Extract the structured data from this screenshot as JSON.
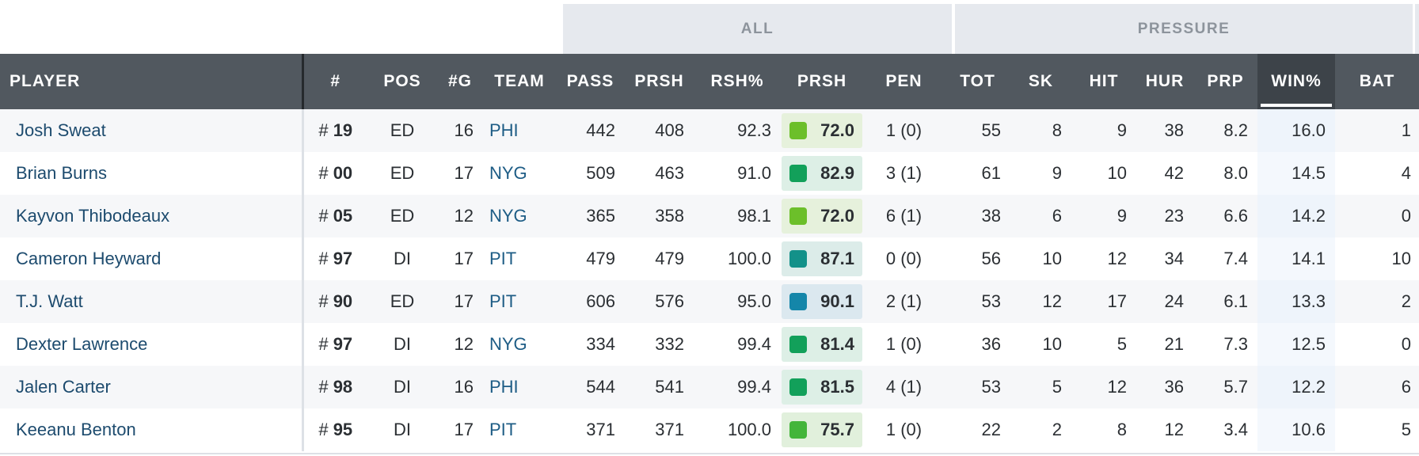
{
  "column_groups": {
    "all": "ALL",
    "pressure": "PRESSURE"
  },
  "headers": {
    "player": "PLAYER",
    "jersey": "#",
    "pos": "POS",
    "games": "#G",
    "team": "TEAM",
    "pass": "PASS",
    "prsh": "PRSH",
    "rsh_pct": "RSH%",
    "prsh_grade": "PRSH",
    "pen": "PEN",
    "tot": "TOT",
    "sk": "SK",
    "hit": "HIT",
    "hur": "HUR",
    "prp": "PRP",
    "win_pct": "WIN%",
    "bat": "BAT"
  },
  "sorted_column": "WIN%",
  "grade_colors": {
    "lime": "#6cbf2a",
    "green": "#12a05a",
    "teal": "#139189",
    "blue": "#1486a9",
    "mid": "#43b53a"
  },
  "rows": [
    {
      "player": "Josh Sweat",
      "jersey_prefix": "#",
      "jersey": "19",
      "pos": "ED",
      "games": "16",
      "team": "PHI",
      "pass": "442",
      "prsh": "408",
      "rsh_pct": "92.3",
      "grade": "72.0",
      "grade_color": "lime",
      "pen": "1 (0)",
      "tot": "55",
      "sk": "8",
      "hit": "9",
      "hur": "38",
      "prp": "8.2",
      "win_pct": "16.0",
      "bat": "1"
    },
    {
      "player": "Brian Burns",
      "jersey_prefix": "#",
      "jersey": "00",
      "pos": "ED",
      "games": "17",
      "team": "NYG",
      "pass": "509",
      "prsh": "463",
      "rsh_pct": "91.0",
      "grade": "82.9",
      "grade_color": "green",
      "pen": "3 (1)",
      "tot": "61",
      "sk": "9",
      "hit": "10",
      "hur": "42",
      "prp": "8.0",
      "win_pct": "14.5",
      "bat": "4"
    },
    {
      "player": "Kayvon Thibodeaux",
      "jersey_prefix": "#",
      "jersey": "05",
      "pos": "ED",
      "games": "12",
      "team": "NYG",
      "pass": "365",
      "prsh": "358",
      "rsh_pct": "98.1",
      "grade": "72.0",
      "grade_color": "lime",
      "pen": "6 (1)",
      "tot": "38",
      "sk": "6",
      "hit": "9",
      "hur": "23",
      "prp": "6.6",
      "win_pct": "14.2",
      "bat": "0"
    },
    {
      "player": "Cameron Heyward",
      "jersey_prefix": "#",
      "jersey": "97",
      "pos": "DI",
      "games": "17",
      "team": "PIT",
      "pass": "479",
      "prsh": "479",
      "rsh_pct": "100.0",
      "grade": "87.1",
      "grade_color": "teal",
      "pen": "0 (0)",
      "tot": "56",
      "sk": "10",
      "hit": "12",
      "hur": "34",
      "prp": "7.4",
      "win_pct": "14.1",
      "bat": "10"
    },
    {
      "player": "T.J. Watt",
      "jersey_prefix": "#",
      "jersey": "90",
      "pos": "ED",
      "games": "17",
      "team": "PIT",
      "pass": "606",
      "prsh": "576",
      "rsh_pct": "95.0",
      "grade": "90.1",
      "grade_color": "blue",
      "pen": "2 (1)",
      "tot": "53",
      "sk": "12",
      "hit": "17",
      "hur": "24",
      "prp": "6.1",
      "win_pct": "13.3",
      "bat": "2"
    },
    {
      "player": "Dexter Lawrence",
      "jersey_prefix": "#",
      "jersey": "97",
      "pos": "DI",
      "games": "12",
      "team": "NYG",
      "pass": "334",
      "prsh": "332",
      "rsh_pct": "99.4",
      "grade": "81.4",
      "grade_color": "green",
      "pen": "1 (0)",
      "tot": "36",
      "sk": "10",
      "hit": "5",
      "hur": "21",
      "prp": "7.3",
      "win_pct": "12.5",
      "bat": "0"
    },
    {
      "player": "Jalen Carter",
      "jersey_prefix": "#",
      "jersey": "98",
      "pos": "DI",
      "games": "16",
      "team": "PHI",
      "pass": "544",
      "prsh": "541",
      "rsh_pct": "99.4",
      "grade": "81.5",
      "grade_color": "green",
      "pen": "4 (1)",
      "tot": "53",
      "sk": "5",
      "hit": "12",
      "hur": "36",
      "prp": "5.7",
      "win_pct": "12.2",
      "bat": "6"
    },
    {
      "player": "Keeanu Benton",
      "jersey_prefix": "#",
      "jersey": "95",
      "pos": "DI",
      "games": "17",
      "team": "PIT",
      "pass": "371",
      "prsh": "371",
      "rsh_pct": "100.0",
      "grade": "75.7",
      "grade_color": "mid",
      "pen": "1 (0)",
      "tot": "22",
      "sk": "2",
      "hit": "8",
      "hur": "12",
      "prp": "3.4",
      "win_pct": "10.6",
      "bat": "5"
    }
  ]
}
